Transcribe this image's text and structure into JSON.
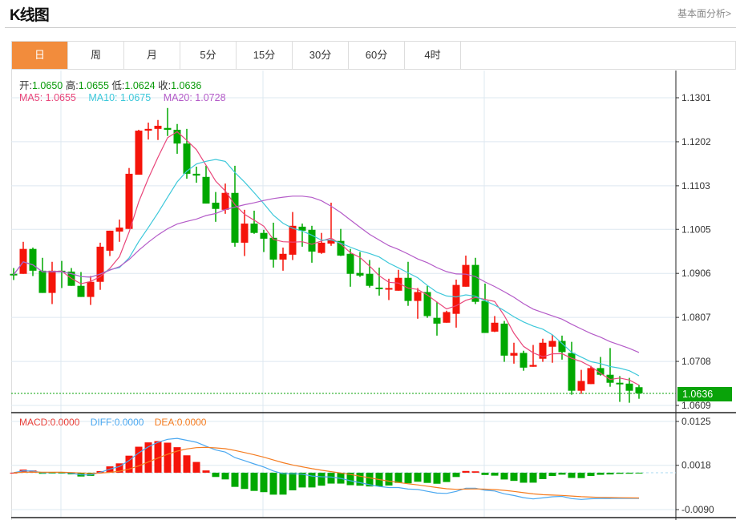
{
  "header": {
    "title": "K线图",
    "fundamental_link": "基本面分析>"
  },
  "tabs": [
    {
      "label": "日",
      "active": true
    },
    {
      "label": "周"
    },
    {
      "label": "月"
    },
    {
      "label": "5分"
    },
    {
      "label": "15分"
    },
    {
      "label": "30分"
    },
    {
      "label": "60分"
    },
    {
      "label": "4时"
    }
  ],
  "ohlc_info": {
    "open_label": "开:",
    "open": "1.0650",
    "high_label": "高:",
    "high": "1.0655",
    "low_label": "低:",
    "low": "1.0624",
    "close_label": "收:",
    "close": "1.0636"
  },
  "ma_info": {
    "ma5": "MA5: 1.0655",
    "ma10": "MA10: 1.0675",
    "ma20": "MA20: 1.0728"
  },
  "macd_info": {
    "macd": "MACD:0.0000",
    "diff": "DIFF:0.0000",
    "dea": "DEA:0.0000"
  },
  "colors": {
    "up": "#F5140A",
    "down": "#00A800",
    "ma5": "#E9467A",
    "ma10": "#3DC8DA",
    "ma20": "#B45BC8",
    "diff": "#4BA8F0",
    "dea": "#F57C20",
    "accent": "#F28C3C"
  },
  "chart_data": {
    "type": "candlestick",
    "price_ticks": [
      "1.1301",
      "1.1202",
      "1.1103",
      "1.1005",
      "1.0906",
      "1.0807",
      "1.0708",
      "1.0609"
    ],
    "price_range": [
      1.0609,
      1.1301
    ],
    "current_price": "1.0636",
    "macd_ticks": [
      "0.0125",
      "0.0018",
      "-0.0090"
    ],
    "macd_range": [
      -0.009,
      0.0125
    ],
    "candles_ohlc": [
      [
        1.0905,
        1.0918,
        1.0891,
        1.0903
      ],
      [
        1.0905,
        1.0977,
        1.0905,
        1.0961
      ],
      [
        1.0961,
        1.0964,
        1.09,
        1.0912
      ],
      [
        1.0912,
        1.0941,
        1.0862,
        1.0862
      ],
      [
        1.0862,
        1.0932,
        1.0837,
        1.0912
      ],
      [
        1.0912,
        1.0934,
        1.0873,
        1.0909
      ],
      [
        1.091,
        1.0918,
        1.0878,
        1.0878
      ],
      [
        1.0878,
        1.0909,
        1.0853,
        1.0853
      ],
      [
        1.0853,
        1.09,
        1.0835,
        1.0887
      ],
      [
        1.0887,
        1.0975,
        1.0869,
        1.0966
      ],
      [
        1.0957,
        1.1002,
        1.0945,
        1.1002
      ],
      [
        1.1,
        1.1027,
        1.0977,
        1.1009
      ],
      [
        1.1006,
        1.1143,
        1.1006,
        1.113
      ],
      [
        1.1128,
        1.1229,
        1.1128,
        1.1227
      ],
      [
        1.1227,
        1.1245,
        1.1207,
        1.1231
      ],
      [
        1.1231,
        1.1251,
        1.1206,
        1.1238
      ],
      [
        1.1233,
        1.1278,
        1.1215,
        1.1229
      ],
      [
        1.1229,
        1.1242,
        1.1175,
        1.1198
      ],
      [
        1.1198,
        1.1231,
        1.1119,
        1.113
      ],
      [
        1.113,
        1.1146,
        1.111,
        1.1126
      ],
      [
        1.1123,
        1.1148,
        1.1063,
        1.1063
      ],
      [
        1.1065,
        1.1089,
        1.1022,
        1.1051
      ],
      [
        1.1049,
        1.1108,
        1.104,
        1.1087
      ],
      [
        1.1087,
        1.1148,
        1.0966,
        1.0975
      ],
      [
        1.0975,
        1.1049,
        1.0945,
        1.1018
      ],
      [
        1.1018,
        1.1047,
        1.0995,
        1.0997
      ],
      [
        1.0997,
        1.1004,
        1.0954,
        1.0984
      ],
      [
        1.0986,
        1.102,
        1.0919,
        1.0937
      ],
      [
        1.0937,
        1.0964,
        1.0912,
        1.095
      ],
      [
        1.0948,
        1.1044,
        1.0936,
        1.1013
      ],
      [
        1.1011,
        1.1018,
        1.0966,
        1.1002
      ],
      [
        1.1004,
        1.1013,
        1.093,
        1.0955
      ],
      [
        1.0952,
        1.0997,
        1.095,
        1.0975
      ],
      [
        1.0973,
        1.1065,
        1.0968,
        1.0982
      ],
      [
        1.0979,
        1.1006,
        1.0945,
        1.0946
      ],
      [
        1.095,
        1.0961,
        1.0876,
        1.0905
      ],
      [
        1.0907,
        1.0954,
        1.0898,
        1.0901
      ],
      [
        1.0905,
        1.0936,
        1.0874,
        1.0878
      ],
      [
        1.0874,
        1.0919,
        1.0856,
        1.0873
      ],
      [
        1.0873,
        1.0894,
        1.0846,
        1.0873
      ],
      [
        1.0867,
        1.0914,
        1.0867,
        1.0896
      ],
      [
        1.0896,
        1.0932,
        1.0833,
        1.0844
      ],
      [
        1.0844,
        1.0873,
        1.0804,
        1.0864
      ],
      [
        1.0864,
        1.0878,
        1.0806,
        1.081
      ],
      [
        1.0806,
        1.0842,
        1.0766,
        1.0793
      ],
      [
        1.0795,
        1.0822,
        1.0795,
        1.0819
      ],
      [
        1.0815,
        1.0892,
        1.0784,
        1.088
      ],
      [
        1.0876,
        1.0946,
        1.0876,
        1.0925
      ],
      [
        1.0925,
        1.0941,
        1.0837,
        1.0842
      ],
      [
        1.0844,
        1.0883,
        1.0772,
        1.0772
      ],
      [
        1.0775,
        1.081,
        1.0774,
        1.0795
      ],
      [
        1.0793,
        1.0799,
        1.0707,
        1.0721
      ],
      [
        1.0721,
        1.075,
        1.0703,
        1.0727
      ],
      [
        1.0727,
        1.0732,
        1.0687,
        1.0694
      ],
      [
        1.0696,
        1.0745,
        1.0696,
        1.07
      ],
      [
        1.0714,
        1.0759,
        1.0707,
        1.075
      ],
      [
        1.0741,
        1.0768,
        1.0705,
        1.0754
      ],
      [
        1.0754,
        1.0766,
        1.0712,
        1.0729
      ],
      [
        1.0727,
        1.0752,
        1.0633,
        1.0642
      ],
      [
        1.0642,
        1.0689,
        1.0635,
        1.0664
      ],
      [
        1.0657,
        1.0698,
        1.0657,
        1.0693
      ],
      [
        1.0693,
        1.0718,
        1.0676,
        1.0678
      ],
      [
        1.0678,
        1.0738,
        1.0651,
        1.066
      ],
      [
        1.066,
        1.0675,
        1.0617,
        1.0658
      ],
      [
        1.0658,
        1.0671,
        1.0615,
        1.0642
      ],
      [
        1.065,
        1.0655,
        1.0624,
        1.0636
      ]
    ]
  }
}
